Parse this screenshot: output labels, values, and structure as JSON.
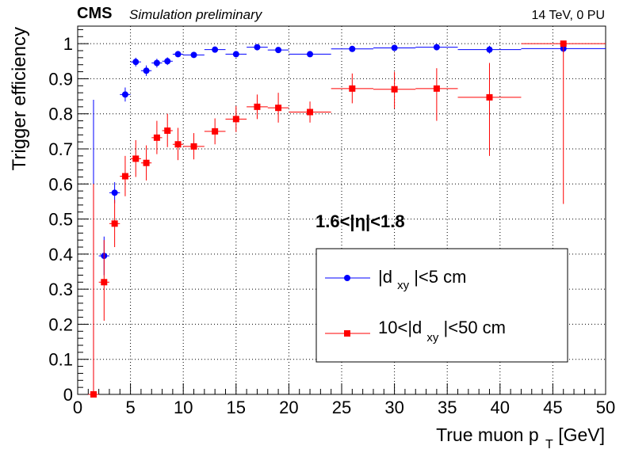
{
  "header": {
    "experiment": "CMS",
    "tag": "Simulation preliminary",
    "conditions": "14 TeV, 0 PU"
  },
  "annotation": "1.6<|η|<1.8",
  "legend": {
    "blue_main": "|d",
    "blue_sub": "xy",
    "blue_tail": "|<5 cm",
    "red_main": "10<|d",
    "red_sub": "xy",
    "red_tail": "|<50 cm"
  },
  "chart_data": {
    "type": "scatter",
    "title": "",
    "xlabel_main": "True muon p",
    "xlabel_sub": "T",
    "xlabel_tail": " [GeV]",
    "ylabel": "Trigger efficiency",
    "xlim": [
      0,
      50
    ],
    "ylim": [
      0,
      1.05
    ],
    "grid": true,
    "legend_position": "lower-right",
    "x_ticks": [
      0,
      5,
      10,
      15,
      20,
      25,
      30,
      35,
      40,
      45,
      50
    ],
    "y_ticks": [
      0,
      0.1,
      0.2,
      0.3,
      0.4,
      0.5,
      0.6,
      0.7,
      0.8,
      0.9,
      1
    ],
    "x_tick_labels": [
      "0",
      "5",
      "10",
      "15",
      "20",
      "25",
      "30",
      "35",
      "40",
      "45",
      "50"
    ],
    "y_tick_labels": [
      "0",
      "0.1",
      "0.2",
      "0.3",
      "0.4",
      "0.5",
      "0.6",
      "0.7",
      "0.8",
      "0.9",
      "1"
    ],
    "series": [
      {
        "name": "|dxy|<5 cm",
        "color": "#0000ff",
        "marker": "circle",
        "points": [
          {
            "x": 1.5,
            "xlo": 1,
            "xhi": 2,
            "y": 0.0,
            "ylo": 0.0,
            "yhi": 0.84
          },
          {
            "x": 2.5,
            "xlo": 2,
            "xhi": 3,
            "y": 0.395,
            "ylo": 0.34,
            "yhi": 0.45
          },
          {
            "x": 3.5,
            "xlo": 3,
            "xhi": 4,
            "y": 0.575,
            "ylo": 0.545,
            "yhi": 0.605
          },
          {
            "x": 4.5,
            "xlo": 4,
            "xhi": 5,
            "y": 0.855,
            "ylo": 0.835,
            "yhi": 0.875
          },
          {
            "x": 5.5,
            "xlo": 5,
            "xhi": 6,
            "y": 0.948,
            "ylo": 0.935,
            "yhi": 0.96
          },
          {
            "x": 6.5,
            "xlo": 6,
            "xhi": 7,
            "y": 0.923,
            "ylo": 0.908,
            "yhi": 0.938
          },
          {
            "x": 7.5,
            "xlo": 7,
            "xhi": 8,
            "y": 0.945,
            "ylo": 0.932,
            "yhi": 0.957
          },
          {
            "x": 8.5,
            "xlo": 8,
            "xhi": 9,
            "y": 0.95,
            "ylo": 0.939,
            "yhi": 0.961
          },
          {
            "x": 9.5,
            "xlo": 9,
            "xhi": 10,
            "y": 0.97,
            "ylo": 0.962,
            "yhi": 0.978
          },
          {
            "x": 11,
            "xlo": 10,
            "xhi": 12,
            "y": 0.968,
            "ylo": 0.961,
            "yhi": 0.975
          },
          {
            "x": 13,
            "xlo": 12,
            "xhi": 14,
            "y": 0.983,
            "ylo": 0.977,
            "yhi": 0.989
          },
          {
            "x": 15,
            "xlo": 14,
            "xhi": 16,
            "y": 0.97,
            "ylo": 0.963,
            "yhi": 0.977
          },
          {
            "x": 17,
            "xlo": 16,
            "xhi": 18,
            "y": 0.99,
            "ylo": 0.985,
            "yhi": 0.995
          },
          {
            "x": 19,
            "xlo": 18,
            "xhi": 20,
            "y": 0.982,
            "ylo": 0.976,
            "yhi": 0.988
          },
          {
            "x": 22,
            "xlo": 20,
            "xhi": 24,
            "y": 0.97,
            "ylo": 0.964,
            "yhi": 0.976
          },
          {
            "x": 26,
            "xlo": 24,
            "xhi": 28,
            "y": 0.985,
            "ylo": 0.98,
            "yhi": 0.99
          },
          {
            "x": 30,
            "xlo": 28,
            "xhi": 32,
            "y": 0.988,
            "ylo": 0.983,
            "yhi": 0.993
          },
          {
            "x": 34,
            "xlo": 32,
            "xhi": 36,
            "y": 0.99,
            "ylo": 0.985,
            "yhi": 0.995
          },
          {
            "x": 39,
            "xlo": 36,
            "xhi": 42,
            "y": 0.983,
            "ylo": 0.972,
            "yhi": 0.994
          },
          {
            "x": 46,
            "xlo": 42,
            "xhi": 50,
            "y": 0.986,
            "ylo": 0.975,
            "yhi": 0.997
          }
        ]
      },
      {
        "name": "10<|dxy|<50 cm",
        "color": "#ff0000",
        "marker": "square",
        "points": [
          {
            "x": 1.5,
            "xlo": 1,
            "xhi": 2,
            "y": 0.0,
            "ylo": 0.0,
            "yhi": 0.6
          },
          {
            "x": 2.5,
            "xlo": 2,
            "xhi": 3,
            "y": 0.32,
            "ylo": 0.21,
            "yhi": 0.44
          },
          {
            "x": 3.5,
            "xlo": 3,
            "xhi": 4,
            "y": 0.487,
            "ylo": 0.42,
            "yhi": 0.555
          },
          {
            "x": 4.5,
            "xlo": 4,
            "xhi": 5,
            "y": 0.622,
            "ylo": 0.565,
            "yhi": 0.68
          },
          {
            "x": 5.5,
            "xlo": 5,
            "xhi": 6,
            "y": 0.672,
            "ylo": 0.62,
            "yhi": 0.725
          },
          {
            "x": 6.5,
            "xlo": 6,
            "xhi": 7,
            "y": 0.66,
            "ylo": 0.61,
            "yhi": 0.71
          },
          {
            "x": 7.5,
            "xlo": 7,
            "xhi": 8,
            "y": 0.732,
            "ylo": 0.685,
            "yhi": 0.78
          },
          {
            "x": 8.5,
            "xlo": 8,
            "xhi": 9,
            "y": 0.752,
            "ylo": 0.705,
            "yhi": 0.8
          },
          {
            "x": 9.5,
            "xlo": 9,
            "xhi": 10,
            "y": 0.713,
            "ylo": 0.668,
            "yhi": 0.76
          },
          {
            "x": 11,
            "xlo": 10,
            "xhi": 12,
            "y": 0.707,
            "ylo": 0.67,
            "yhi": 0.745
          },
          {
            "x": 13,
            "xlo": 12,
            "xhi": 14,
            "y": 0.75,
            "ylo": 0.713,
            "yhi": 0.787
          },
          {
            "x": 15,
            "xlo": 14,
            "xhi": 16,
            "y": 0.785,
            "ylo": 0.748,
            "yhi": 0.822
          },
          {
            "x": 17,
            "xlo": 16,
            "xhi": 18,
            "y": 0.82,
            "ylo": 0.785,
            "yhi": 0.855
          },
          {
            "x": 19,
            "xlo": 18,
            "xhi": 20,
            "y": 0.817,
            "ylo": 0.775,
            "yhi": 0.86
          },
          {
            "x": 22,
            "xlo": 20,
            "xhi": 24,
            "y": 0.805,
            "ylo": 0.775,
            "yhi": 0.835
          },
          {
            "x": 26,
            "xlo": 24,
            "xhi": 28,
            "y": 0.872,
            "ylo": 0.83,
            "yhi": 0.915
          },
          {
            "x": 30,
            "xlo": 28,
            "xhi": 32,
            "y": 0.87,
            "ylo": 0.815,
            "yhi": 0.92
          },
          {
            "x": 34,
            "xlo": 32,
            "xhi": 36,
            "y": 0.872,
            "ylo": 0.78,
            "yhi": 0.93
          },
          {
            "x": 39,
            "xlo": 36,
            "xhi": 42,
            "y": 0.847,
            "ylo": 0.68,
            "yhi": 0.945
          },
          {
            "x": 46,
            "xlo": 42,
            "xhi": 50,
            "y": 1.0,
            "ylo": 0.543,
            "yhi": 1.0
          }
        ]
      }
    ]
  }
}
